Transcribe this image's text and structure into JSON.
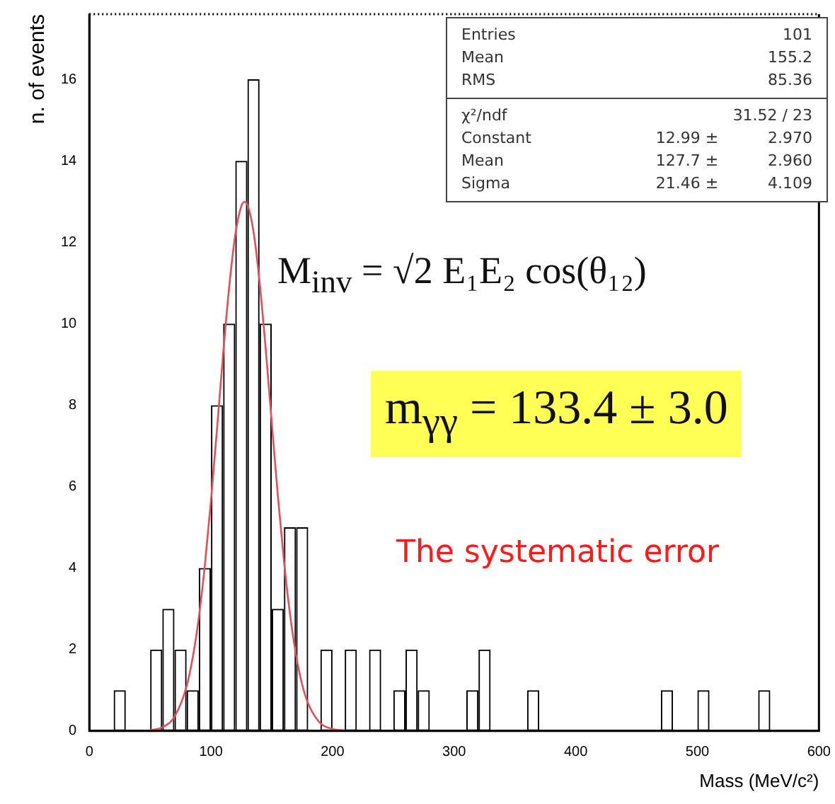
{
  "chart_data": {
    "type": "histogram",
    "xlabel": "Mass (MeV/c²)",
    "ylabel": "n. of events",
    "bins": [
      0,
      10,
      20,
      30,
      40,
      50,
      60,
      70,
      80,
      90,
      100,
      110,
      120,
      130,
      140,
      150,
      160,
      170,
      180,
      190,
      200,
      210,
      220,
      230,
      240,
      250,
      260,
      270,
      280,
      290,
      300,
      310,
      320,
      330,
      340,
      350,
      360,
      370,
      380,
      390,
      400,
      410,
      420,
      430,
      440,
      450,
      460,
      470,
      480,
      490,
      500,
      510,
      520,
      530,
      540,
      550,
      560,
      570,
      580,
      590,
      600
    ],
    "color": "#000000",
    "values": [
      0,
      0,
      1,
      0,
      0,
      2,
      3,
      2,
      1,
      4,
      8,
      10,
      14,
      16,
      10,
      3,
      5,
      5,
      0,
      2,
      0,
      2,
      0,
      2,
      0,
      1,
      2,
      1,
      0,
      0,
      0,
      1,
      2,
      0,
      0,
      0,
      1,
      0,
      0,
      0,
      0,
      0,
      0,
      0,
      0,
      0,
      0,
      1,
      0,
      0,
      1,
      0,
      0,
      0,
      0,
      1,
      0,
      0,
      0,
      0
    ],
    "series": [
      {
        "type": "line",
        "color": "#e0505a",
        "x": [
          50,
          60,
          70,
          80,
          85,
          90,
          95,
          100,
          105,
          110,
          115,
          120,
          125,
          127.7,
          130,
          135,
          140,
          145,
          150,
          155,
          160,
          165,
          170,
          175,
          180,
          190,
          200,
          210
        ],
        "values": [
          0.02,
          0.09,
          0.35,
          1.1,
          1.8,
          2.78,
          4.07,
          5.65,
          7.42,
          9.25,
          10.9,
          12.18,
          12.89,
          12.99,
          12.92,
          12.26,
          11.02,
          9.39,
          7.57,
          5.78,
          4.19,
          2.87,
          1.86,
          1.14,
          0.67,
          0.19,
          0.05,
          0.01
        ]
      }
    ],
    "xlim": [
      0,
      600
    ],
    "xticks": [
      0,
      100,
      200,
      300,
      400,
      500,
      600
    ],
    "ylim": [
      0,
      17.6
    ],
    "yticks": [
      0,
      2,
      4,
      6,
      8,
      10,
      12,
      14,
      16
    ],
    "grid": false,
    "legend": false,
    "marker": "none",
    "line_style": "solid",
    "annotations": [
      "Entries 101",
      "Mean 155.2",
      "RMS 85.36",
      "χ²/ndf 31.52 / 23",
      "Constant 12.99 ± 2.970",
      "Mean 127.7 ± 2.960",
      "Sigma 21.46 ± 4.109",
      "M$_{inv}$ = √2 E₁E₂ cos(θ₁₂)",
      "m$_{γγ}$ = 133.4 ± 3.0",
      "The systematic error"
    ]
  }
}
